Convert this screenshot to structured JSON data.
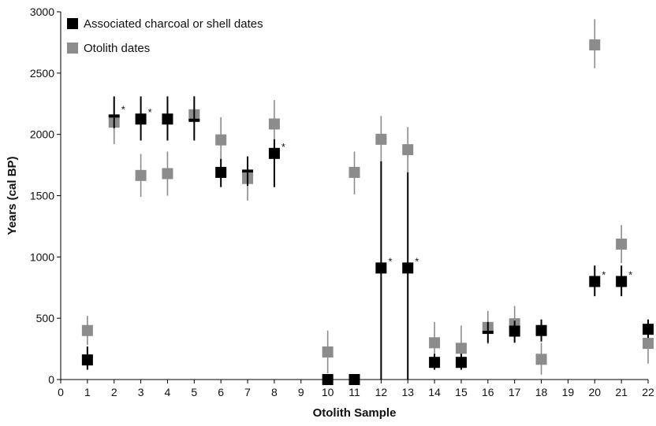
{
  "chart_data": {
    "type": "scatter",
    "xlabel": "Otolith Sample",
    "ylabel": "Years (cal BP)",
    "xlim": [
      0,
      22
    ],
    "ylim": [
      0,
      3000
    ],
    "x_ticks": [
      0,
      1,
      2,
      3,
      4,
      5,
      6,
      7,
      8,
      9,
      10,
      11,
      12,
      13,
      14,
      15,
      16,
      17,
      18,
      19,
      20,
      21,
      22
    ],
    "y_ticks": [
      0,
      500,
      1000,
      1500,
      2000,
      2500,
      3000
    ],
    "legend_placement": "top-left",
    "grid": false,
    "series": [
      {
        "name": "Associated charcoal or shell dates",
        "color": "#000000",
        "marker": "square",
        "points": [
          {
            "x": 1,
            "y": 160,
            "ylo": 80,
            "yhi": 270
          },
          {
            "x": 2,
            "y": 2150,
            "ylo": 2050,
            "yhi": 2310,
            "star": "*",
            "shape": "bar"
          },
          {
            "x": 3,
            "y": 2125,
            "ylo": 1950,
            "yhi": 2310,
            "star": "*"
          },
          {
            "x": 4,
            "y": 2125,
            "ylo": 1950,
            "yhi": 2310
          },
          {
            "x": 5,
            "y": 2115,
            "ylo": 1950,
            "yhi": 2310,
            "shape": "bar"
          },
          {
            "x": 6,
            "y": 1690,
            "ylo": 1570,
            "yhi": 1800
          },
          {
            "x": 7,
            "y": 1700,
            "ylo": 1580,
            "yhi": 1820,
            "shape": "bar"
          },
          {
            "x": 8,
            "y": 1845,
            "ylo": 1570,
            "yhi": 1960,
            "star": "*"
          },
          {
            "x": 10,
            "y": 0,
            "ylo": 0,
            "yhi": 0
          },
          {
            "x": 11,
            "y": 0,
            "ylo": 0,
            "yhi": 0
          },
          {
            "x": 12,
            "y": 910,
            "ylo": 0,
            "yhi": 1780,
            "star": "*"
          },
          {
            "x": 13,
            "y": 910,
            "ylo": 0,
            "yhi": 1690,
            "star": "*"
          },
          {
            "x": 14,
            "y": 140,
            "ylo": 80,
            "yhi": 210
          },
          {
            "x": 15,
            "y": 140,
            "ylo": 80,
            "yhi": 210
          },
          {
            "x": 16,
            "y": 385,
            "ylo": 300,
            "yhi": 470,
            "shape": "bar"
          },
          {
            "x": 17,
            "y": 395,
            "ylo": 300,
            "yhi": 480
          },
          {
            "x": 18,
            "y": 400,
            "ylo": 310,
            "yhi": 490
          },
          {
            "x": 20,
            "y": 800,
            "ylo": 680,
            "yhi": 930,
            "star": "*"
          },
          {
            "x": 21,
            "y": 800,
            "ylo": 680,
            "yhi": 930,
            "star": "*"
          },
          {
            "x": 22,
            "y": 410,
            "ylo": 340,
            "yhi": 490
          }
        ]
      },
      {
        "name": "Otolith dates",
        "color": "#8c8c8c",
        "marker": "square",
        "points": [
          {
            "x": 1,
            "y": 400,
            "ylo": 280,
            "yhi": 520
          },
          {
            "x": 2,
            "y": 2100,
            "ylo": 1920,
            "yhi": 2280
          },
          {
            "x": 3,
            "y": 1665,
            "ylo": 1490,
            "yhi": 1840
          },
          {
            "x": 4,
            "y": 1680,
            "ylo": 1500,
            "yhi": 1860
          },
          {
            "x": 5,
            "y": 2160,
            "ylo": 2000,
            "yhi": 2310
          },
          {
            "x": 6,
            "y": 1955,
            "ylo": 1770,
            "yhi": 2140
          },
          {
            "x": 7,
            "y": 1640,
            "ylo": 1460,
            "yhi": 1820
          },
          {
            "x": 8,
            "y": 2085,
            "ylo": 1900,
            "yhi": 2280
          },
          {
            "x": 10,
            "y": 225,
            "ylo": 50,
            "yhi": 400
          },
          {
            "x": 11,
            "y": 1690,
            "ylo": 1510,
            "yhi": 1860
          },
          {
            "x": 12,
            "y": 1960,
            "ylo": 1770,
            "yhi": 2150
          },
          {
            "x": 13,
            "y": 1875,
            "ylo": 1690,
            "yhi": 2060
          },
          {
            "x": 14,
            "y": 300,
            "ylo": 130,
            "yhi": 470
          },
          {
            "x": 15,
            "y": 255,
            "ylo": 80,
            "yhi": 440
          },
          {
            "x": 16,
            "y": 425,
            "ylo": 290,
            "yhi": 560
          },
          {
            "x": 17,
            "y": 455,
            "ylo": 310,
            "yhi": 600
          },
          {
            "x": 18,
            "y": 165,
            "ylo": 40,
            "yhi": 300
          },
          {
            "x": 20,
            "y": 2730,
            "ylo": 2540,
            "yhi": 2940
          },
          {
            "x": 21,
            "y": 1105,
            "ylo": 950,
            "yhi": 1260
          },
          {
            "x": 22,
            "y": 295,
            "ylo": 130,
            "yhi": 460
          }
        ]
      }
    ]
  }
}
